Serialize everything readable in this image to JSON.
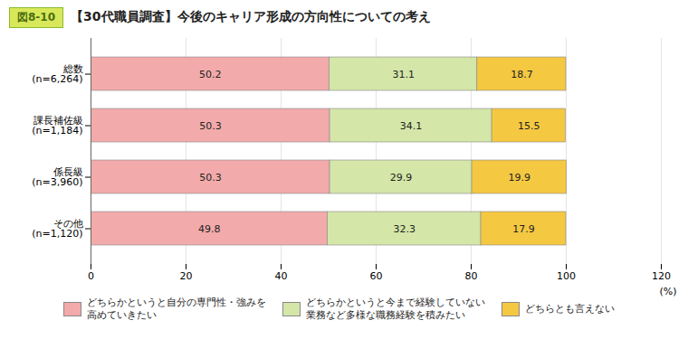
{
  "chart_data": {
    "type": "bar",
    "orientation": "horizontal",
    "stacked": true,
    "title": "【30代職員調査】今後のキャリア形成の方向性についての考え",
    "annotations": [
      "図8-10"
    ],
    "xlabel": "(%)",
    "categories": [
      "総数\n(n=6,264)",
      "課長補佐級\n(n=1,184)",
      "係長級\n(n=3,960)",
      "その他\n(n=1,120)"
    ],
    "series": [
      {
        "name": "どちらかというと自分の専門性・強みを\n高めていきたい",
        "color": "#F2AAAA",
        "values": [
          50.2,
          50.3,
          50.3,
          49.8
        ]
      },
      {
        "name": "どちらかというと今まで経験していない\n業務など多様な職務経験を積みたい",
        "color": "#D4E6A8",
        "values": [
          31.1,
          34.1,
          29.9,
          32.3
        ]
      },
      {
        "name": "どちらとも言えない",
        "color": "#F5C842",
        "values": [
          18.7,
          15.5,
          19.9,
          17.9
        ]
      }
    ],
    "xlim": [
      0,
      120
    ],
    "xticks": [
      0,
      20,
      40,
      60,
      80,
      100,
      120
    ],
    "grid": true,
    "data_labels": true,
    "legend": "bottom"
  }
}
